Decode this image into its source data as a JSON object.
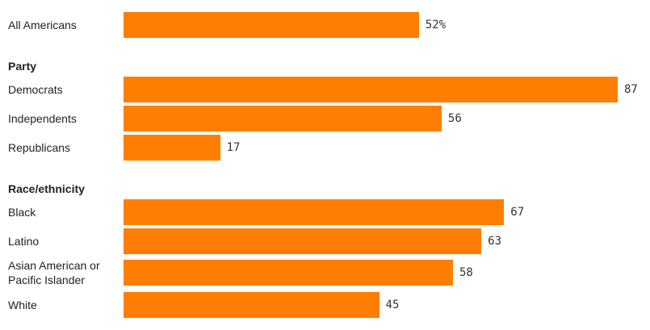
{
  "chart_data": {
    "type": "bar",
    "orientation": "horizontal",
    "color": "#ff7d00",
    "groups": [
      {
        "categories": [
          "All Americans"
        ],
        "values": [
          52
        ],
        "value_labels": [
          "52%"
        ]
      },
      {
        "name": "Party",
        "categories": [
          "Democrats",
          "Independents",
          "Republicans"
        ],
        "values": [
          87,
          56,
          17
        ]
      },
      {
        "name": "Race/ethnicity",
        "categories": [
          "Black",
          "Latino",
          "Asian American or Pacific Islander",
          "White"
        ],
        "values": [
          67,
          63,
          58,
          45
        ]
      }
    ]
  }
}
